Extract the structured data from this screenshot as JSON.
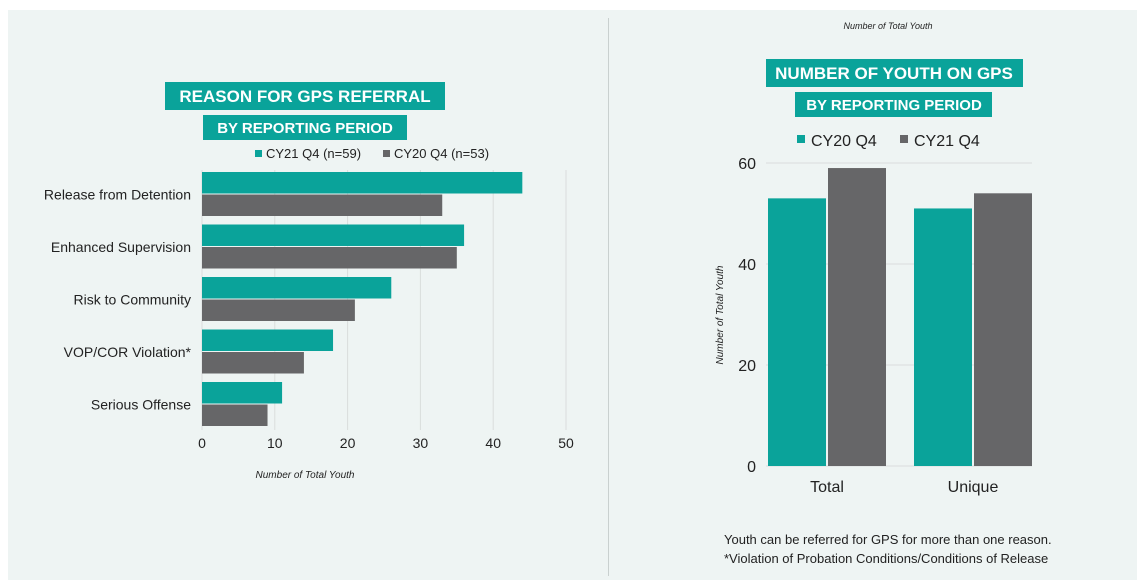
{
  "colors": {
    "teal": "#0aa39a",
    "gray": "#666668",
    "background": "#eef4f3",
    "grid": "#d9dddc"
  },
  "chart_data": [
    {
      "type": "bar",
      "orientation": "horizontal",
      "title": "REASON FOR GPS REFERRAL",
      "subtitle": "BY REPORTING PERIOD",
      "xlabel": "Number of Total Youth",
      "ylabel": "",
      "categories": [
        "Release from Detention",
        "Enhanced Supervision",
        "Risk to Community",
        "VOP/COR Violation*",
        "Serious Offense"
      ],
      "series": [
        {
          "name": "CY21 Q4 (n=59)",
          "color": "#0aa39a",
          "values": [
            44,
            36,
            26,
            18,
            11
          ]
        },
        {
          "name": "CY20 Q4 (n=53)",
          "color": "#666668",
          "values": [
            33,
            35,
            21,
            14,
            9
          ]
        }
      ],
      "xlim": [
        0,
        50
      ],
      "xticks": [
        "0",
        "10",
        "20",
        "30",
        "40",
        "50"
      ],
      "grid": true,
      "legend": "top"
    },
    {
      "type": "bar",
      "orientation": "vertical",
      "title": "NUMBER OF YOUTH ON GPS",
      "subtitle": "BY REPORTING PERIOD",
      "top_label": "Number of Total Youth",
      "ylabel": "Number of Total Youth",
      "xlabel": "",
      "categories": [
        "Total",
        "Unique"
      ],
      "series": [
        {
          "name": "CY20 Q4",
          "color": "#0aa39a",
          "values": [
            53,
            51
          ]
        },
        {
          "name": "CY21 Q4",
          "color": "#666668",
          "values": [
            59,
            54
          ]
        }
      ],
      "ylim": [
        0,
        60
      ],
      "yticks": [
        "0",
        "20",
        "40",
        "60"
      ],
      "grid": true,
      "legend": "top"
    }
  ],
  "notes": [
    "Youth can be referred for GPS for more than one reason.",
    "*Violation of Probation Conditions/Conditions of Release"
  ]
}
